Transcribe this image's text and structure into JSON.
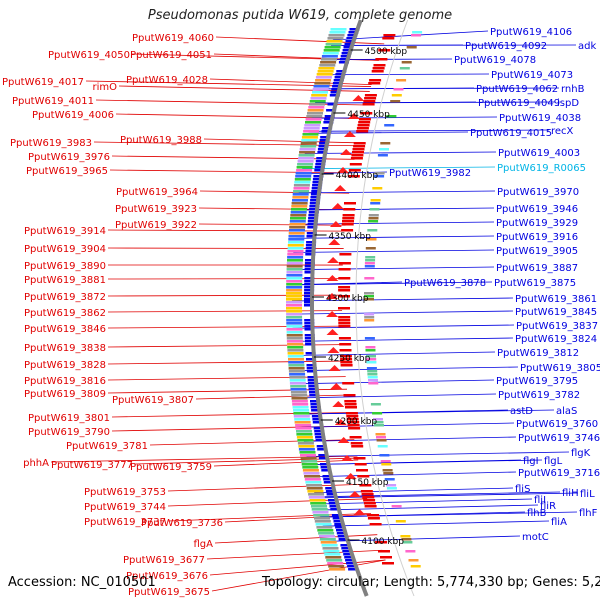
{
  "title": "Pseudomonas putida W619, complete genome",
  "footer": {
    "accession": "Accession: NC_010501",
    "summary": "Topology: circular; Length: 5,774,330 bp; Genes: 5,280"
  },
  "colors": {
    "left_labels": "#e00000",
    "right_labels": "#0000e0",
    "rna_label": "#00b4e6",
    "backbone": "#808080"
  },
  "ticks": [
    "4500 kbp",
    "4450 kbp",
    "4400 kbp",
    "4350 kbp",
    "4300 kbp",
    "4250 kbp",
    "4200 kbp",
    "4150 kbp",
    "4100 kbp"
  ],
  "left_labels": [
    "PputW619_4060",
    "PputW619_4050",
    "PputW619_4051",
    "PputW619_4017",
    "rimO",
    "PputW619_4028",
    "PputW619_4011",
    "PputW619_4006",
    "PputW619_3988",
    "PputW619_3983",
    "PputW619_3976",
    "PputW619_3965",
    "PputW619_3964",
    "PputW619_3923",
    "PputW619_3922",
    "PputW619_3914",
    "PputW619_3904",
    "PputW619_3890",
    "PputW619_3881",
    "PputW619_3872",
    "PputW619_3862",
    "PputW619_3846",
    "PputW619_3838",
    "PputW619_3828",
    "PputW619_3816",
    "PputW619_3809",
    "PputW619_3807",
    "PputW619_3801",
    "PputW619_3790",
    "PputW619_3781",
    "phhA",
    "PputW619_3777",
    "PputW619_3759",
    "PputW619_3753",
    "PputW619_3744",
    "PputW619_3737",
    "PputW619_3736",
    "flgA",
    "PputW619_3677",
    "PputW619_3676",
    "PputW619_3675"
  ],
  "right_labels": [
    "PputW619_4106",
    "PputW619_4092",
    "adk",
    "PputW619_4078",
    "PputW619_4073",
    "PputW619_4062",
    "rnhB",
    "PputW619_4049",
    "ispD",
    "PputW619_4038",
    "PputW619_4015",
    "recX",
    "PputW619_4003",
    "PputW619_R0065",
    "PputW619_3982",
    "PputW619_3970",
    "PputW619_3946",
    "PputW619_3929",
    "PputW619_3916",
    "PputW619_3905",
    "PputW619_3887",
    "PputW619_3878",
    "PputW619_3875",
    "PputW619_3861",
    "PputW619_3845",
    "PputW619_3837",
    "PputW619_3824",
    "PputW619_3812",
    "PputW619_3805",
    "PputW619_3795",
    "PputW619_3782",
    "astD",
    "alaS",
    "PputW619_3760",
    "PputW619_3746",
    "flgK",
    "flgL",
    "flgI",
    "PputW619_3716",
    "fliS",
    "fliH",
    "fliL",
    "fliI",
    "fliR",
    "flhB",
    "flhF",
    "fliA",
    "motC"
  ]
}
